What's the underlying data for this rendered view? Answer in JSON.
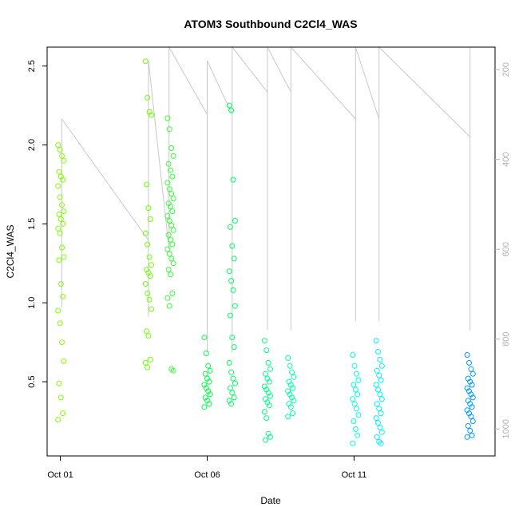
{
  "chart_data": {
    "type": "scatter",
    "title": "ATOM3 Southbound C2Cl4_WAS",
    "xlabel": "Date",
    "ylabel": "C2Cl4_WAS",
    "x_ticks": [
      "Oct 01",
      "Oct 06",
      "Oct 11"
    ],
    "y_ticks": [
      "0.5",
      "1.0",
      "1.5",
      "2.0",
      "2.5"
    ],
    "y2_ticks": [
      "200",
      "400",
      "600",
      "800",
      "1000"
    ],
    "xlim_days": [
      -0.45,
      14.8
    ],
    "ylim": [
      0.03,
      2.62
    ],
    "y2lim": [
      1060,
      150
    ],
    "series": [
      {
        "x": 0.02,
        "values": [
          2.0,
          1.97,
          1.93,
          1.9,
          1.83,
          1.8,
          1.78,
          1.74,
          1.67,
          1.62,
          1.58,
          1.56,
          1.53,
          1.5,
          1.47,
          1.44,
          1.35,
          1.29,
          1.27,
          1.12,
          1.04,
          0.95,
          0.87,
          0.75,
          0.63,
          0.49,
          0.4,
          0.3,
          0.26
        ],
        "color": "#80ff00"
      },
      {
        "x": 3.0,
        "values": [
          2.53,
          2.3,
          2.21,
          2.19,
          1.75,
          1.6,
          1.53,
          1.44,
          1.37,
          1.29,
          1.24,
          1.21,
          1.19,
          1.17,
          1.12,
          1.06,
          1.02,
          0.96,
          0.82,
          0.79,
          0.64,
          0.62,
          0.59
        ],
        "color": "#6bff00"
      },
      {
        "x": 3.75,
        "values": [
          2.17,
          2.1,
          1.98,
          1.93,
          1.88,
          1.84,
          1.8,
          1.76,
          1.72,
          1.69,
          1.66,
          1.63,
          1.61,
          1.58,
          1.55,
          1.52,
          1.49,
          1.46,
          1.43,
          1.4,
          1.37,
          1.34,
          1.31,
          1.28,
          1.25,
          1.21,
          1.18,
          1.06,
          1.03,
          0.98,
          0.58,
          0.57
        ],
        "color": "#33ff33"
      },
      {
        "x": 5.0,
        "values": [
          0.78,
          0.68,
          0.6,
          0.57,
          0.55,
          0.52,
          0.5,
          0.48,
          0.46,
          0.44,
          0.42,
          0.4,
          0.38,
          0.36,
          0.34
        ],
        "color": "#00ff44"
      },
      {
        "x": 5.85,
        "values": [
          2.25,
          2.22,
          1.78,
          1.52,
          1.48,
          1.36,
          1.28,
          1.2,
          1.14,
          1.08,
          0.98,
          0.92,
          0.78,
          0.72,
          0.62,
          0.56,
          0.52,
          0.49,
          0.46,
          0.43,
          0.4,
          0.38,
          0.36
        ],
        "color": "#00ff66"
      },
      {
        "x": 7.05,
        "values": [
          0.76,
          0.7,
          0.62,
          0.58,
          0.55,
          0.52,
          0.5,
          0.47,
          0.45,
          0.43,
          0.41,
          0.39,
          0.37,
          0.35,
          0.31,
          0.27,
          0.17,
          0.15,
          0.13
        ],
        "color": "#00ff88"
      },
      {
        "x": 7.85,
        "values": [
          0.65,
          0.6,
          0.56,
          0.53,
          0.5,
          0.48,
          0.46,
          0.44,
          0.42,
          0.4,
          0.38,
          0.36,
          0.34,
          0.3,
          0.28
        ],
        "color": "#00ffaa"
      },
      {
        "x": 10.05,
        "values": [
          0.67,
          0.6,
          0.55,
          0.51,
          0.48,
          0.45,
          0.42,
          0.39,
          0.36,
          0.33,
          0.29,
          0.25,
          0.2,
          0.16,
          0.11
        ],
        "color": "#00ffdd"
      },
      {
        "x": 10.85,
        "values": [
          0.76,
          0.69,
          0.64,
          0.6,
          0.57,
          0.54,
          0.51,
          0.48,
          0.45,
          0.42,
          0.39,
          0.36,
          0.33,
          0.3,
          0.27,
          0.24,
          0.21,
          0.18,
          0.15,
          0.12,
          0.11
        ],
        "color": "#00f0ff"
      },
      {
        "x": 13.95,
        "values": [
          0.67,
          0.62,
          0.58,
          0.55,
          0.52,
          0.5,
          0.48,
          0.46,
          0.44,
          0.42,
          0.4,
          0.38,
          0.36,
          0.34,
          0.32,
          0.3,
          0.28,
          0.25,
          0.22,
          0.19,
          0.16,
          0.15
        ],
        "color": "#0099ff"
      }
    ],
    "track": [
      [
        0.05,
        730
      ],
      [
        0.05,
        310
      ],
      [
        3.0,
        580
      ],
      [
        3.0,
        750
      ],
      [
        3.0,
        180
      ],
      [
        3.7,
        600
      ],
      [
        3.7,
        150
      ],
      [
        5.0,
        300
      ],
      [
        5.0,
        830
      ],
      [
        5.0,
        180
      ],
      [
        5.85,
        300
      ],
      [
        5.85,
        830
      ],
      [
        5.85,
        150
      ],
      [
        7.05,
        250
      ],
      [
        7.05,
        780
      ],
      [
        7.05,
        150
      ],
      [
        7.85,
        250
      ],
      [
        7.85,
        780
      ],
      [
        7.85,
        150
      ],
      [
        10.05,
        310
      ],
      [
        10.05,
        760
      ],
      [
        10.05,
        150
      ],
      [
        10.85,
        310
      ],
      [
        10.85,
        760
      ],
      [
        10.85,
        150
      ],
      [
        13.95,
        350
      ],
      [
        13.95,
        780
      ],
      [
        13.95,
        150
      ]
    ],
    "grid": false,
    "legend": "none"
  }
}
